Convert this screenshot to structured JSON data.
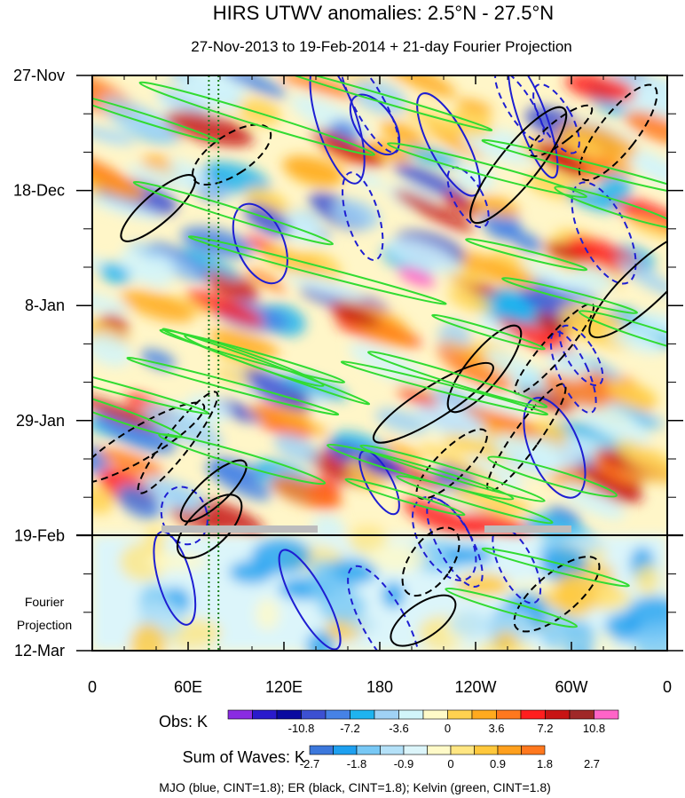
{
  "chart_data": {
    "type": "heatmap",
    "title": "HIRS UTWV anomalies: 2.5°N - 27.5°N",
    "subtitle": "27-Nov-2013 to 19-Feb-2014 + 21-day Fourier Projection",
    "x_tick_labels": [
      "0",
      "60E",
      "120E",
      "180",
      "120W",
      "60W",
      "0"
    ],
    "x_tick_lon_east": [
      0,
      60,
      120,
      180,
      240,
      300,
      360
    ],
    "xlim": [
      0,
      360
    ],
    "y_tick_labels": [
      "27-Nov",
      "18-Dec",
      "8-Jan",
      "29-Jan",
      "19-Feb",
      "12-Mar"
    ],
    "y_tick_days": [
      0,
      21,
      42,
      63,
      84,
      105
    ],
    "ylim_days": [
      0,
      105
    ],
    "observation_end_label": "19-Feb",
    "projection_label": [
      "Fourier",
      "Projection"
    ],
    "obs_colorbar": {
      "label": "Obs: K",
      "tick_labels": [
        "-10.8",
        "-7.2",
        "-3.6",
        "0",
        "3.6",
        "7.2",
        "10.8"
      ],
      "colors": [
        "#8a2be2",
        "#2a1acc",
        "#0a0aa0",
        "#3c50d2",
        "#4682e6",
        "#1eb4f0",
        "#a0d2f5",
        "#d2f5fa",
        "#fffac8",
        "#ffd250",
        "#ffaa1e",
        "#ff781e",
        "#ff1e1e",
        "#c81414",
        "#a02828",
        "#ff64c8"
      ]
    },
    "waves_colorbar": {
      "label": "Sum of Waves: K",
      "tick_labels": [
        "-2.7",
        "-1.8",
        "-0.9",
        "0",
        "0.9",
        "1.8",
        "2.7"
      ],
      "colors": [
        "#3c78dc",
        "#1ea0f0",
        "#78c8f5",
        "#b4e1f8",
        "#dcf5fa",
        "#fffac8",
        "#ffe682",
        "#ffc83c",
        "#ffa01e",
        "#ff781e"
      ]
    },
    "contour_note": "MJO (blue, CINT=1.8); ER (black, CINT=1.8); Kelvin (green, CINT=1.8)",
    "contour_colors": {
      "mjo": "#1e1ed2",
      "er": "#000000",
      "kelvin": "#32dc32"
    },
    "reference_lines_lon_east": [
      73,
      79
    ],
    "grid": false
  }
}
